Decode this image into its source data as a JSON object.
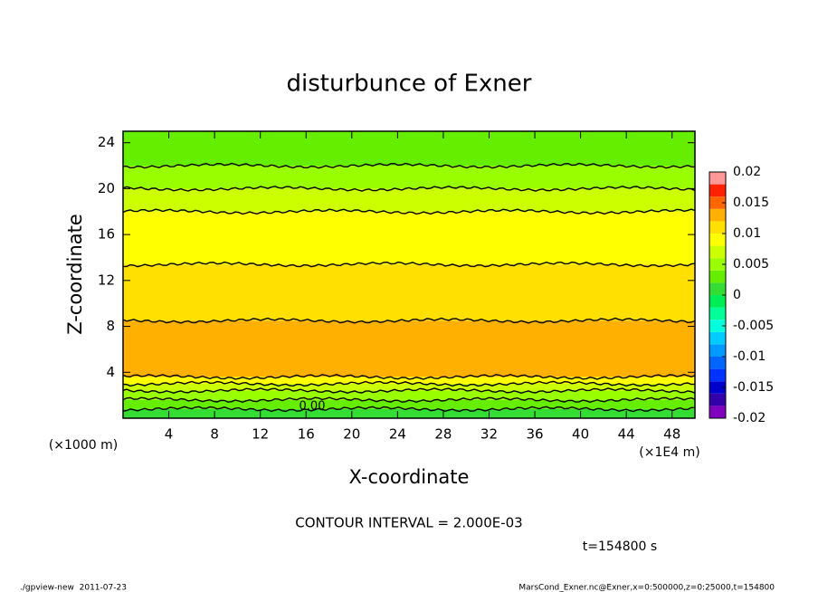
{
  "chart_data": {
    "type": "contour",
    "title": "disturbunce of Exner",
    "xlabel": "X-coordinate",
    "ylabel": "Z-coordinate",
    "x_unit": "(×1E4 m)",
    "y_unit": "(×1000 m)",
    "xlim": [
      0,
      50
    ],
    "xticks": [
      4,
      8,
      12,
      16,
      20,
      24,
      28,
      32,
      36,
      40,
      44,
      48
    ],
    "ylim": [
      0,
      25
    ],
    "yticks": [
      4,
      8,
      12,
      16,
      20,
      24
    ],
    "z_edges": [
      0,
      0.8,
      1.6,
      2.4,
      3.0,
      3.6,
      8.5,
      13.4,
      18,
      20,
      22,
      25
    ],
    "values": [
      0.001,
      0.003,
      0.005,
      0.007,
      0.009,
      0.013,
      0.011,
      0.009,
      0.007,
      0.005,
      0.003
    ],
    "contour_label": "0.00",
    "contour_interval": "CONTOUR INTERVAL = 2.000E-03",
    "time_label": "t=154800 s",
    "footer_left": "./gpview-new  2011-07-23",
    "footer_right": "MarsCond_Exner.nc@Exner,x=0:500000,z=0:25000,t=154800",
    "colorbar": {
      "lim": [
        -0.02,
        0.02
      ],
      "ticks": [
        0.02,
        0.015,
        0.01,
        0.005,
        0,
        -0.005,
        -0.01,
        -0.015,
        -0.02
      ],
      "levels": [
        -0.02,
        -0.018,
        -0.016,
        -0.014,
        -0.012,
        -0.01,
        -0.008,
        -0.006,
        -0.004,
        -0.002,
        0,
        0.002,
        0.004,
        0.006,
        0.008,
        0.01,
        0.012,
        0.014,
        0.016,
        0.018,
        0.02
      ],
      "colors": [
        "#7f00bf",
        "#3300aa",
        "#0000cc",
        "#0033ff",
        "#0066ff",
        "#0099ff",
        "#00ccff",
        "#00ffdd",
        "#00ff99",
        "#00ee55",
        "#33dd33",
        "#66ee00",
        "#99ff00",
        "#ccff00",
        "#ffff00",
        "#ffe000",
        "#ffb000",
        "#ff6600",
        "#ff2200",
        "#ff9999"
      ]
    }
  }
}
